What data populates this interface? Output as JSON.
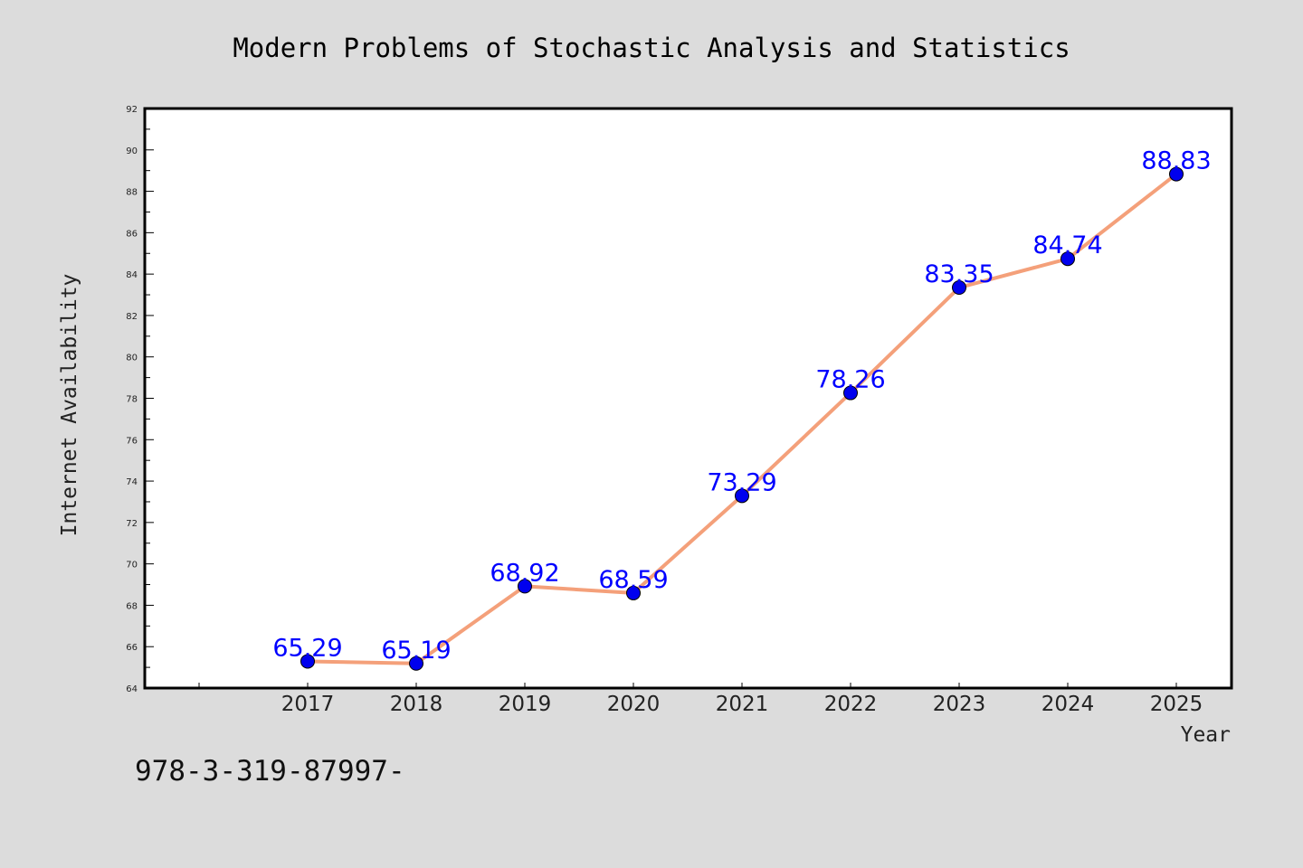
{
  "chart_data": {
    "type": "line",
    "title": "Modern Problems of Stochastic Analysis and Statistics",
    "xlabel": "Year",
    "ylabel": "Internet Availability",
    "categories": [
      "2017",
      "2018",
      "2019",
      "2020",
      "2021",
      "2022",
      "2023",
      "2024",
      "2025"
    ],
    "series": [
      {
        "values": [
          65.29,
          65.19,
          68.92,
          68.59,
          73.29,
          78.26,
          83.35,
          84.74,
          88.83
        ],
        "labels": [
          "65.29",
          "65.19",
          "68.92",
          "68.59",
          "73.29",
          "78.26",
          "83.35",
          "84.74",
          "88.83"
        ]
      }
    ],
    "ylim": [
      64,
      92
    ],
    "yticks": [
      "64",
      "66",
      "68",
      "70",
      "72",
      "74",
      "76",
      "78",
      "80",
      "82",
      "84",
      "86",
      "88",
      "90",
      "92"
    ],
    "grid": false,
    "colors": {
      "line": "#f4a07a",
      "marker": "#0000ee",
      "label": "#0000ff",
      "background": "#dcdcdc",
      "plot_background": "#ffffff"
    }
  },
  "annotation": "978-3-319-87997-"
}
